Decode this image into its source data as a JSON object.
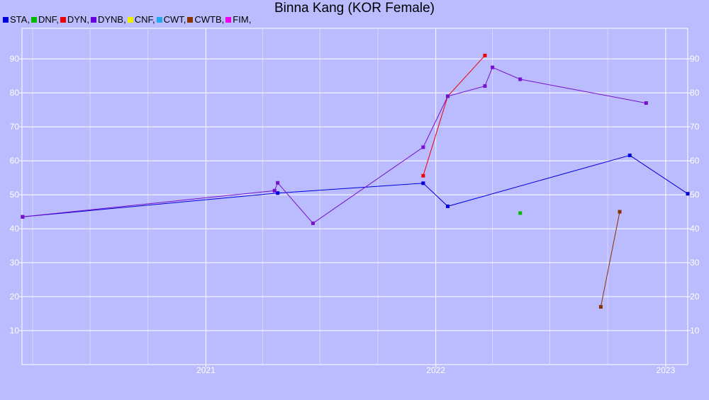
{
  "chart_data": {
    "type": "line",
    "title": "Binna Kang (KOR Female)",
    "xlabel": "",
    "ylabel": "",
    "ylim": [
      0,
      99
    ],
    "yticks": [
      10,
      20,
      30,
      40,
      50,
      60,
      70,
      80,
      90
    ],
    "xlim": [
      "2020-03-15",
      "2023-02-05"
    ],
    "xticks": [
      {
        "label": "2021",
        "date": "2021-01-01"
      },
      {
        "label": "2022",
        "date": "2022-01-01"
      },
      {
        "label": "2023",
        "date": "2023-01-01"
      }
    ],
    "grid": true,
    "legend_position": "top-left",
    "series": [
      {
        "name": "STA",
        "color": "#0000dd",
        "legend_color": "#0000dd",
        "points": [
          [
            "2020-03-16",
            43.5
          ],
          [
            "2021-04-25",
            50.5
          ],
          [
            "2021-12-12",
            53.4
          ],
          [
            "2022-01-20",
            46.6
          ],
          [
            "2022-11-05",
            61.6
          ],
          [
            "2023-02-05",
            50.3
          ]
        ]
      },
      {
        "name": "DNF",
        "color": "#00bb00",
        "legend_color": "#00bb00",
        "points": [
          [
            "2022-05-15",
            44.6
          ]
        ]
      },
      {
        "name": "DYN",
        "color": "#ee0000",
        "legend_color": "#ee0000",
        "points": [
          [
            "2021-12-12",
            55.6
          ],
          [
            "2022-01-20",
            79.0
          ],
          [
            "2022-03-20",
            91.0
          ]
        ]
      },
      {
        "name": "DYNB",
        "color": "#7711cc",
        "legend_color": "#6600dd",
        "points": [
          [
            "2020-03-16",
            43.5
          ],
          [
            "2021-04-20",
            51.2
          ],
          [
            "2021-04-25",
            53.5
          ],
          [
            "2021-06-20",
            41.6
          ],
          [
            "2021-12-12",
            64.0
          ],
          [
            "2022-01-20",
            79.0
          ],
          [
            "2022-03-20",
            82.0
          ],
          [
            "2022-04-01",
            87.5
          ],
          [
            "2022-05-15",
            84.0
          ],
          [
            "2022-12-01",
            77.0
          ]
        ]
      },
      {
        "name": "CNF",
        "color": "#eeee00",
        "legend_color": "#eeee00",
        "points": []
      },
      {
        "name": "CWT",
        "color": "#22aaee",
        "legend_color": "#22aaee",
        "points": []
      },
      {
        "name": "CWTB",
        "color": "#883300",
        "legend_color": "#883300",
        "points": [
          [
            "2022-09-20",
            17.0
          ],
          [
            "2022-10-20",
            45.0
          ]
        ]
      },
      {
        "name": "FIM",
        "color": "#ee00ee",
        "legend_color": "#ee00ee",
        "points": []
      }
    ]
  }
}
